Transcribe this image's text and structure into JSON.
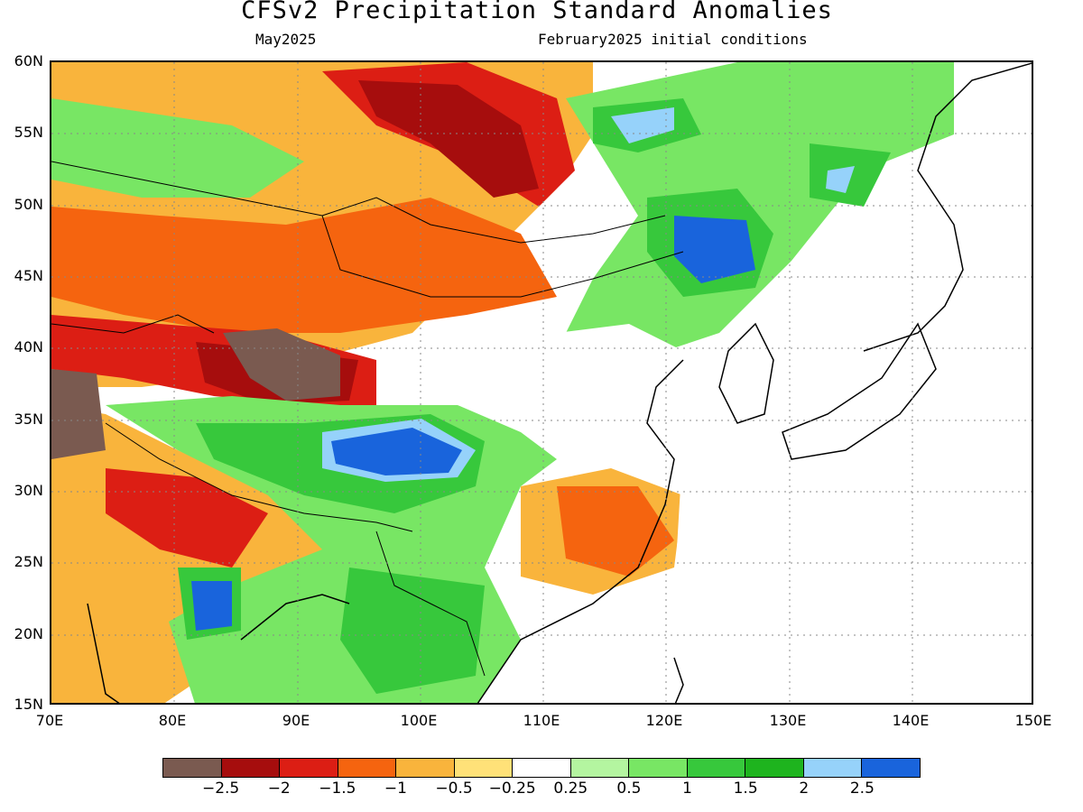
{
  "header": {
    "title": "CFSv2 Precipitation Standard Anomalies",
    "target_month": "May2025",
    "initial_conditions": "February2025 initial conditions"
  },
  "axes": {
    "lat_labels": [
      "60N",
      "55N",
      "50N",
      "45N",
      "40N",
      "35N",
      "30N",
      "25N",
      "20N",
      "15N"
    ],
    "lon_labels": [
      "70E",
      "80E",
      "90E",
      "100E",
      "110E",
      "120E",
      "130E",
      "140E",
      "150E"
    ],
    "lat_range": [
      15,
      60
    ],
    "lon_range": [
      70,
      150
    ]
  },
  "colorbar": {
    "colors": [
      "#7a5a50",
      "#a60d0d",
      "#dc1e14",
      "#f5640f",
      "#f9b43c",
      "#ffe178",
      "#ffffff",
      "#b4f5a0",
      "#78e664",
      "#37c83c",
      "#1eb41e",
      "#96d2fa",
      "#1964dc"
    ],
    "tick_labels": [
      "−2.5",
      "−2",
      "−1.5",
      "−1",
      "−0.5",
      "−0.25",
      "0.25",
      "0.5",
      "1",
      "1.5",
      "2",
      "2.5"
    ]
  }
}
